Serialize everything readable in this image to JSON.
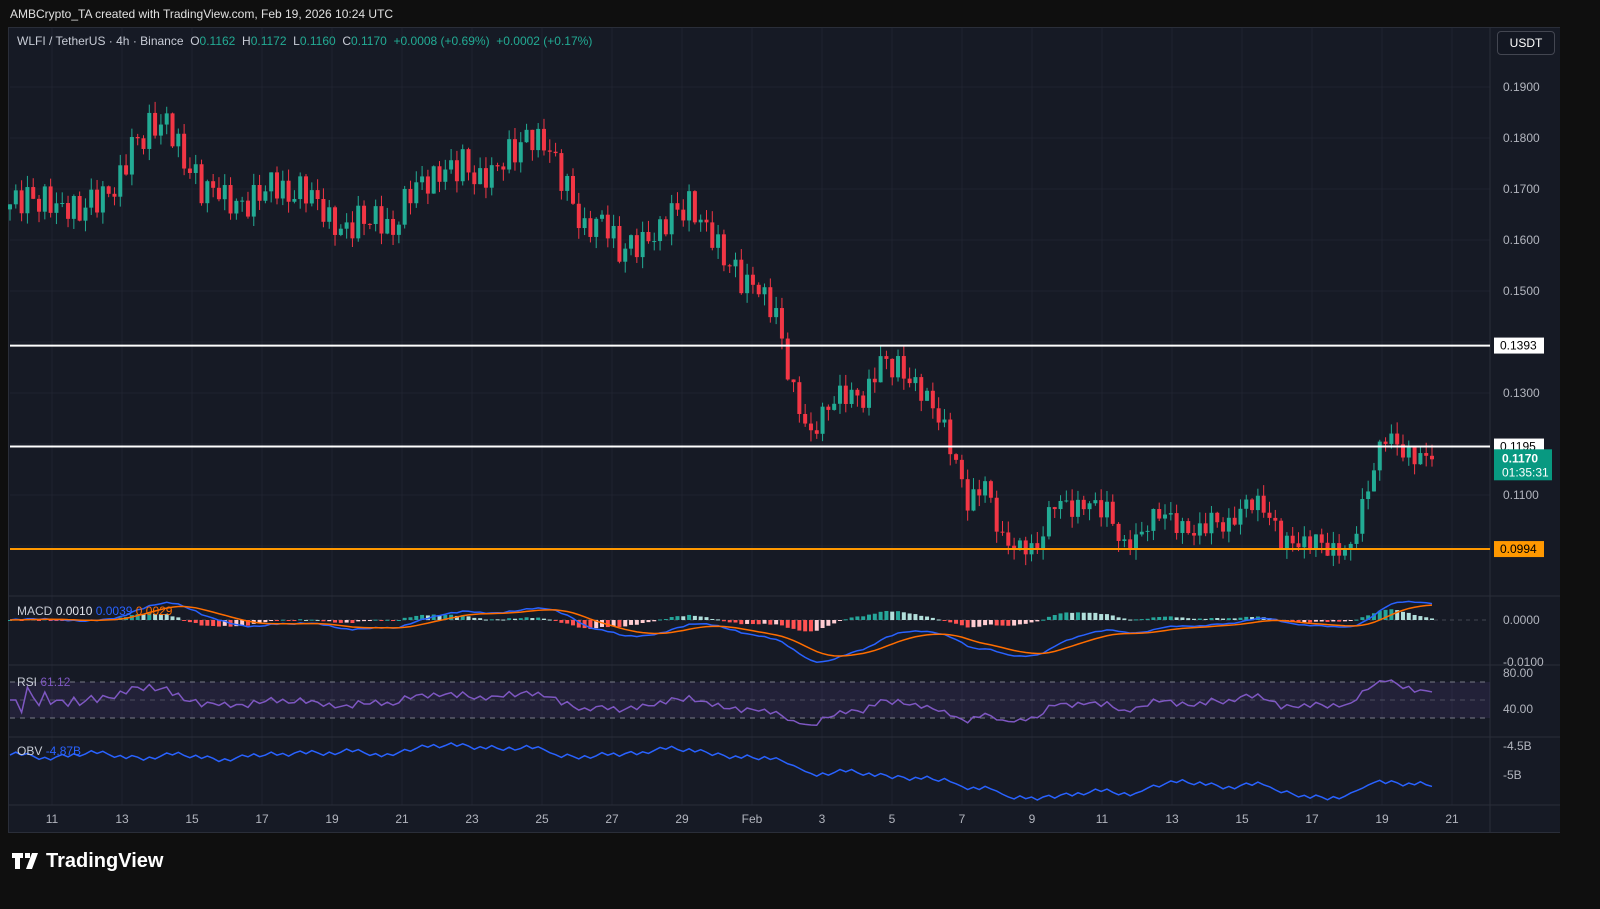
{
  "credit": "AMBCrypto_TA created with TradingView.com, Feb 19, 2026 10:24 UTC",
  "legend": {
    "symbol": "WLFI / TetherUS · 4h · Binance",
    "o_label": "O",
    "o": "0.1162",
    "h_label": "H",
    "h": "0.1172",
    "l_label": "L",
    "l": "0.1160",
    "c_label": "C",
    "c": "0.1170",
    "change": "+0.0008 (+0.69%)",
    "change2": "+0.0002 (+0.17%)"
  },
  "currency": "USDT",
  "indicators": {
    "macd_label": "MACD",
    "macd_hist": "0.0010",
    "macd_line": "0.0039",
    "macd_signal": "0.0029",
    "rsi_label": "RSI",
    "rsi": "61.12",
    "obv_label": "OBV",
    "obv": "-4.87B"
  },
  "last_price": {
    "value": "0.1170",
    "countdown": "01:35:31"
  },
  "brand": "TradingView",
  "colors": {
    "up": "#22ab94",
    "down": "#f23645",
    "macd": "#2962ff",
    "signal": "#ff6d00",
    "rsi": "#7e57c2",
    "obv": "#2962ff",
    "support": "#ff9800",
    "level": "#ffffff"
  },
  "chart_data": {
    "type": "candlestick",
    "title": "WLFI / TetherUS · 4h · Binance",
    "ylim": [
      0.092,
      0.196
    ],
    "y_ticks": [
      "0.1900",
      "0.1800",
      "0.1700",
      "0.1600",
      "0.1500",
      "0.1300",
      "0.1100"
    ],
    "x_ticks": [
      "11",
      "13",
      "15",
      "17",
      "19",
      "21",
      "23",
      "25",
      "27",
      "29",
      "Feb",
      "3",
      "5",
      "7",
      "9",
      "11",
      "13",
      "15",
      "17",
      "19",
      "21"
    ],
    "horizontal_levels": [
      {
        "value": "0.1393",
        "color": "#ffffff"
      },
      {
        "value": "0.1195",
        "color": "#ffffff"
      },
      {
        "value": "0.0994",
        "color": "#ff9800"
      }
    ],
    "closes_12h": [
      0.167,
      0.168,
      0.168,
      0.167,
      0.166,
      0.168,
      0.169,
      0.178,
      0.182,
      0.184,
      0.176,
      0.17,
      0.169,
      0.166,
      0.168,
      0.172,
      0.169,
      0.17,
      0.165,
      0.161,
      0.164,
      0.165,
      0.162,
      0.17,
      0.171,
      0.173,
      0.175,
      0.172,
      0.175,
      0.178,
      0.18,
      0.177,
      0.17,
      0.162,
      0.165,
      0.158,
      0.159,
      0.16,
      0.165,
      0.167,
      0.163,
      0.157,
      0.152,
      0.15,
      0.145,
      0.13,
      0.122,
      0.128,
      0.13,
      0.128,
      0.136,
      0.135,
      0.132,
      0.128,
      0.12,
      0.108,
      0.112,
      0.101,
      0.1,
      0.1,
      0.109,
      0.107,
      0.108,
      0.107,
      0.1,
      0.103,
      0.107,
      0.104,
      0.102,
      0.105,
      0.104,
      0.109,
      0.108,
      0.101,
      0.1,
      0.101,
      0.099,
      0.1,
      0.112,
      0.122,
      0.118,
      0.117
    ],
    "macd_ticks": [
      "0.0000",
      "-0.0100"
    ],
    "rsi_ticks": [
      "80.00",
      "40.00"
    ],
    "obv_ticks": [
      "-4.5B",
      "-5B"
    ]
  }
}
